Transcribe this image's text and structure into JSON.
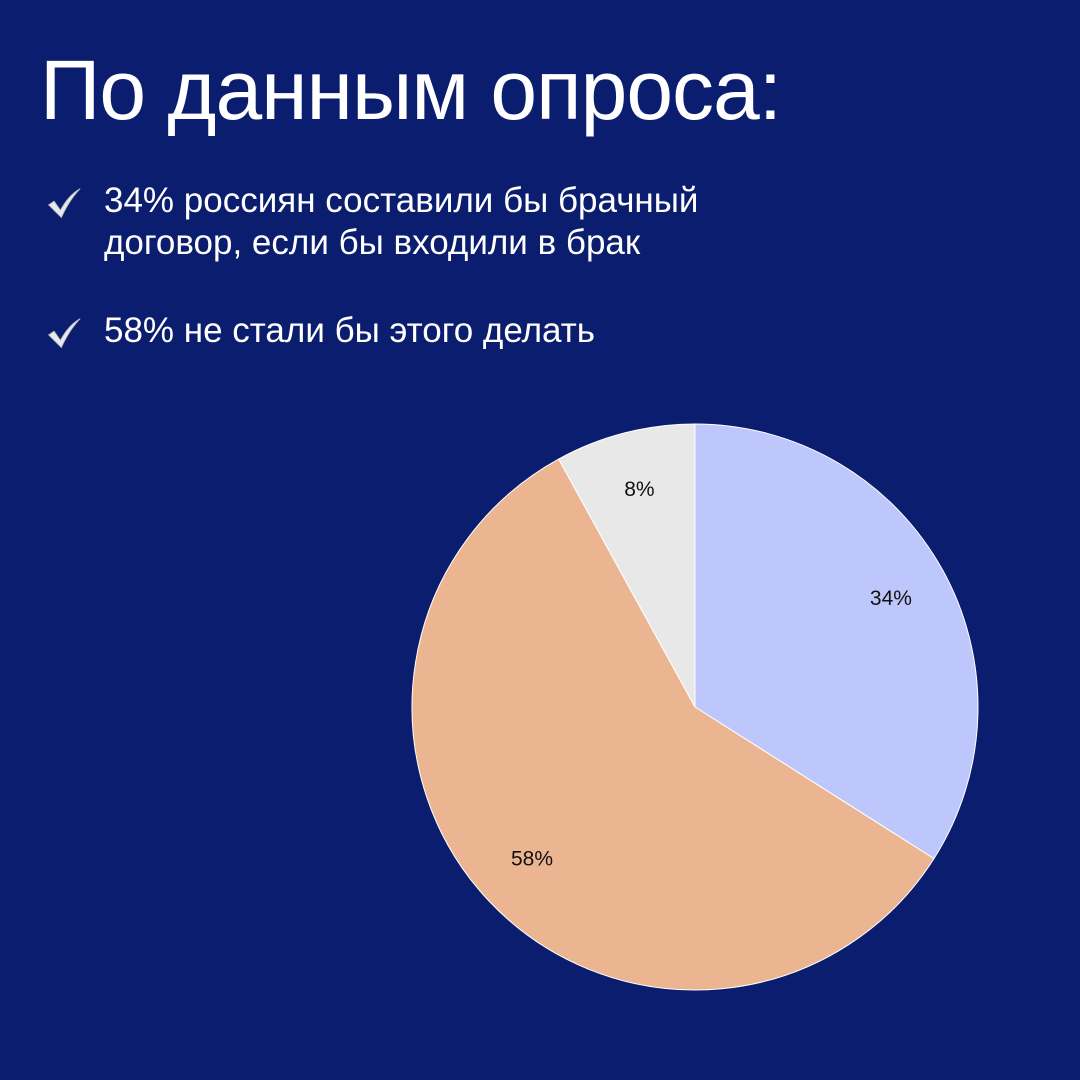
{
  "colors": {
    "background": "#0b1d6e",
    "text": "#ffffff",
    "check": "#e9eaee",
    "slice_stroke": "#ffffff",
    "slice_label": "#111111"
  },
  "title": "По данным опроса:",
  "bullets": [
    {
      "icon": "check-mark-icon",
      "text": "34% россиян составили бы брачный договор, если бы входили в брак"
    },
    {
      "icon": "check-mark-icon",
      "text": "58% не стали бы этого делать"
    }
  ],
  "chart_data": {
    "type": "pie",
    "title": "",
    "slices": [
      {
        "value": 34,
        "label": "34%",
        "color": "#bdc7fb"
      },
      {
        "value": 58,
        "label": "58%",
        "color": "#ebb591"
      },
      {
        "value": 8,
        "label": "8%",
        "color": "#e8e8e8"
      }
    ],
    "start": "12 o'clock",
    "direction": "clockwise",
    "legend": "none"
  }
}
